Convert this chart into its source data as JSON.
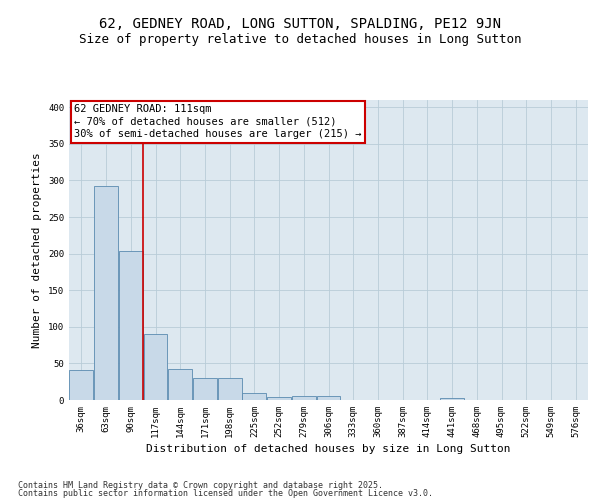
{
  "title": "62, GEDNEY ROAD, LONG SUTTON, SPALDING, PE12 9JN",
  "subtitle": "Size of property relative to detached houses in Long Sutton",
  "xlabel": "Distribution of detached houses by size in Long Sutton",
  "ylabel": "Number of detached properties",
  "categories": [
    "36sqm",
    "63sqm",
    "90sqm",
    "117sqm",
    "144sqm",
    "171sqm",
    "198sqm",
    "225sqm",
    "252sqm",
    "279sqm",
    "306sqm",
    "333sqm",
    "360sqm",
    "387sqm",
    "414sqm",
    "441sqm",
    "468sqm",
    "495sqm",
    "522sqm",
    "549sqm",
    "576sqm"
  ],
  "values": [
    41,
    293,
    204,
    90,
    43,
    30,
    30,
    9,
    4,
    6,
    6,
    0,
    0,
    0,
    0,
    3,
    0,
    0,
    0,
    0,
    0
  ],
  "bar_color": "#c8d9e8",
  "bar_edge_color": "#5a8ab0",
  "vline_x_index": 2,
  "vline_color": "#cc0000",
  "annotation_text": "62 GEDNEY ROAD: 111sqm\n← 70% of detached houses are smaller (512)\n30% of semi-detached houses are larger (215) →",
  "annotation_box_color": "#ffffff",
  "annotation_box_edge": "#cc0000",
  "ylim": [
    0,
    410
  ],
  "yticks": [
    0,
    50,
    100,
    150,
    200,
    250,
    300,
    350,
    400
  ],
  "background_color": "#dde8f0",
  "footer_line1": "Contains HM Land Registry data © Crown copyright and database right 2025.",
  "footer_line2": "Contains public sector information licensed under the Open Government Licence v3.0.",
  "title_fontsize": 10,
  "subtitle_fontsize": 9,
  "xlabel_fontsize": 8,
  "ylabel_fontsize": 8,
  "tick_fontsize": 6.5,
  "footer_fontsize": 6,
  "annotation_fontsize": 7.5
}
